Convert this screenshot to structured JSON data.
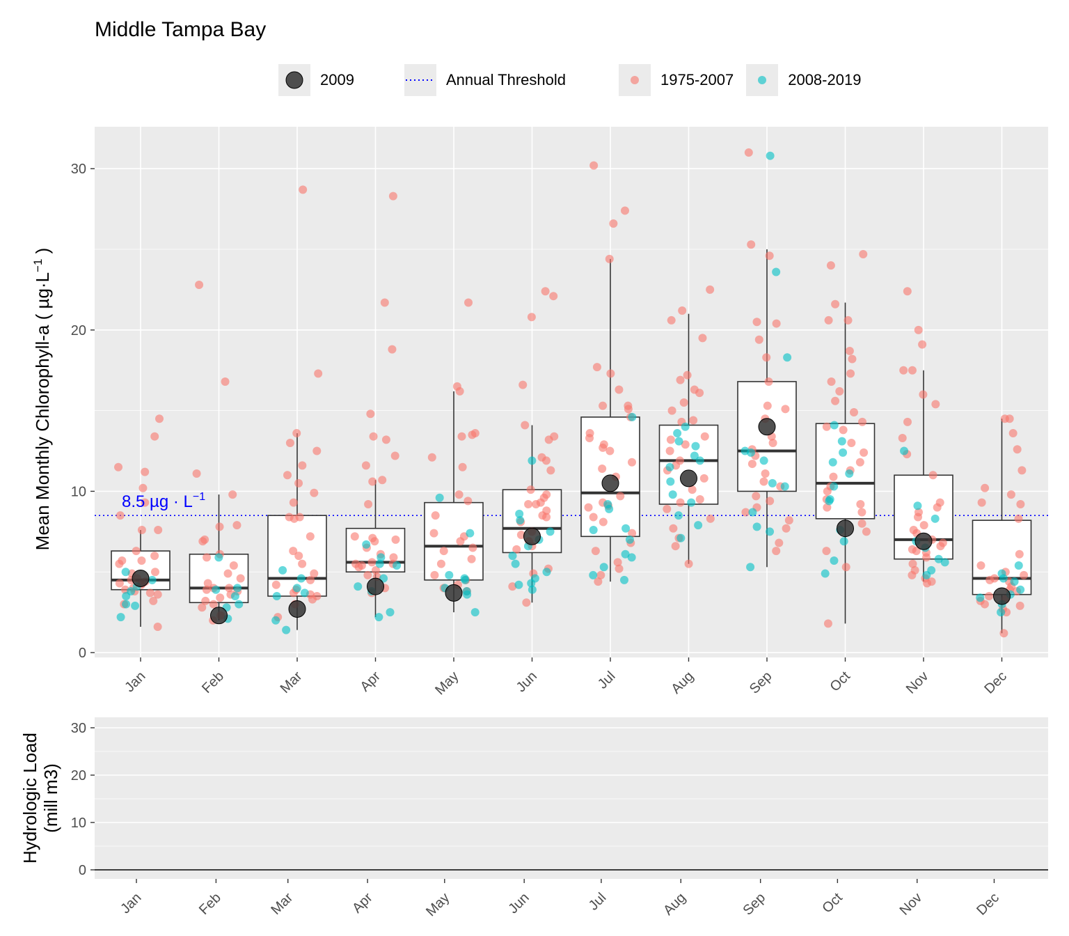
{
  "title": "Middle Tampa Bay",
  "legend": [
    {
      "key": "2009",
      "label": "2009"
    },
    {
      "key": "threshold",
      "label": "Annual Threshold"
    },
    {
      "key": "early",
      "label": "1975-2007"
    },
    {
      "key": "late",
      "label": "2008-2019"
    }
  ],
  "colors": {
    "panel": "#ebebeb",
    "early": "#F8766D",
    "late": "#00BFC4",
    "year2009": "#333333",
    "threshold": "#0000FF",
    "box": "#333333"
  },
  "threshold_label": "8.5 µg · L",
  "threshold_label_sup": "−1",
  "chart_data": [
    {
      "type": "box",
      "ylabel": "Mean Monthly Chlorophyll-a ( µg·L",
      "ylabel_sup": "−1",
      "ylabel_tail": " )",
      "ylim": [
        0,
        32.5
      ],
      "yticks": [
        0,
        10,
        20,
        30
      ],
      "categories": [
        "Jan",
        "Feb",
        "Mar",
        "Apr",
        "May",
        "Jun",
        "Jul",
        "Aug",
        "Sep",
        "Oct",
        "Nov",
        "Dec"
      ],
      "threshold": 8.5,
      "boxes": [
        {
          "month": "Jan",
          "q1": 3.9,
          "median": 4.5,
          "q3": 6.3,
          "whisker_low": 1.6,
          "whisker_high": 7.6
        },
        {
          "month": "Feb",
          "q1": 3.1,
          "median": 4.0,
          "q3": 6.1,
          "whisker_low": 2.0,
          "whisker_high": 9.8
        },
        {
          "month": "Mar",
          "q1": 3.5,
          "median": 4.6,
          "q3": 8.5,
          "whisker_low": 1.4,
          "whisker_high": 13.6
        },
        {
          "month": "Apr",
          "q1": 5.0,
          "median": 5.6,
          "q3": 7.7,
          "whisker_low": 2.2,
          "whisker_high": 10.7
        },
        {
          "month": "May",
          "q1": 4.5,
          "median": 6.6,
          "q3": 9.3,
          "whisker_low": 2.5,
          "whisker_high": 16.2
        },
        {
          "month": "Jun",
          "q1": 6.2,
          "median": 7.7,
          "q3": 10.1,
          "whisker_low": 3.1,
          "whisker_high": 14.1
        },
        {
          "month": "Jul",
          "q1": 7.2,
          "median": 9.9,
          "q3": 14.6,
          "whisker_low": 4.4,
          "whisker_high": 24.4
        },
        {
          "month": "Aug",
          "q1": 9.2,
          "median": 11.9,
          "q3": 14.1,
          "whisker_low": 5.5,
          "whisker_high": 21.0
        },
        {
          "month": "Sep",
          "q1": 10.0,
          "median": 12.5,
          "q3": 16.8,
          "whisker_low": 5.3,
          "whisker_high": 25.0
        },
        {
          "month": "Oct",
          "q1": 8.3,
          "median": 10.5,
          "q3": 14.2,
          "whisker_low": 1.8,
          "whisker_high": 21.7
        },
        {
          "month": "Nov",
          "q1": 5.8,
          "median": 7.0,
          "q3": 11.0,
          "whisker_low": 4.4,
          "whisker_high": 17.5
        },
        {
          "month": "Dec",
          "q1": 3.6,
          "median": 4.6,
          "q3": 8.2,
          "whisker_low": 1.2,
          "whisker_high": 14.5
        }
      ],
      "points_1975_2007": [
        [
          14.5,
          13.4,
          11.5,
          11.2,
          10.2,
          9.3,
          8.5,
          7.6,
          7.6,
          6.3,
          6.0,
          5.7,
          5.7,
          5.5,
          5.0,
          4.9,
          4.6,
          4.5,
          4.4,
          4.3,
          4.3,
          4.2,
          4.0,
          3.9,
          3.8,
          3.7,
          3.6,
          3.2,
          3.0,
          1.6
        ],
        [
          22.8,
          16.8,
          11.1,
          9.8,
          7.9,
          7.8,
          7.0,
          6.9,
          6.1,
          5.9,
          5.4,
          4.9,
          4.6,
          4.3,
          4.0,
          4.0,
          3.9,
          3.8,
          3.6,
          3.4,
          3.2,
          3.0,
          2.8,
          2.3,
          2.0
        ],
        [
          28.7,
          17.3,
          13.6,
          13.0,
          12.5,
          11.6,
          11.0,
          10.5,
          9.9,
          9.3,
          8.4,
          8.4,
          8.3,
          7.2,
          6.3,
          6.0,
          5.5,
          4.9,
          4.5,
          4.2,
          3.9,
          3.7,
          3.6,
          3.5,
          3.3,
          3.0,
          2.2
        ],
        [
          28.3,
          21.7,
          18.8,
          14.8,
          13.4,
          13.2,
          12.2,
          11.6,
          10.7,
          10.6,
          9.2,
          7.2,
          7.1,
          7.0,
          6.9,
          6.5,
          6.1,
          5.9,
          5.6,
          5.5,
          5.5,
          5.4,
          5.3,
          5.1,
          4.8,
          4.7,
          4.0,
          3.7
        ],
        [
          21.7,
          16.5,
          16.2,
          13.6,
          13.5,
          13.4,
          12.1,
          11.5,
          9.8,
          9.4,
          8.5,
          7.4,
          7.2,
          6.9,
          6.5,
          6.3,
          5.8,
          5.5,
          4.8,
          4.5,
          4.2,
          4.0,
          3.8
        ],
        [
          22.4,
          22.1,
          20.8,
          16.6,
          14.1,
          13.4,
          13.2,
          12.1,
          11.9,
          11.3,
          10.1,
          9.8,
          9.6,
          9.3,
          9.2,
          9.2,
          8.8,
          8.5,
          8.4,
          8.1,
          7.5,
          7.3,
          6.9,
          6.6,
          6.4,
          5.2,
          4.9,
          4.1,
          3.1
        ],
        [
          30.2,
          27.4,
          26.6,
          24.4,
          17.7,
          17.3,
          16.3,
          15.3,
          15.3,
          15.1,
          14.6,
          13.6,
          13.3,
          12.9,
          12.7,
          12.5,
          11.8,
          11.4,
          10.9,
          9.7,
          9.3,
          9.1,
          9.0,
          8.4,
          8.1,
          7.4,
          6.8,
          6.3,
          5.6,
          5.2,
          4.8,
          4.4
        ],
        [
          22.5,
          21.2,
          20.6,
          19.5,
          17.2,
          16.9,
          16.3,
          16.1,
          15.5,
          15.0,
          14.4,
          14.3,
          13.4,
          13.2,
          12.9,
          12.5,
          11.9,
          11.6,
          11.3,
          10.8,
          10.1,
          9.5,
          9.3,
          8.9,
          8.3,
          7.7,
          7.1,
          6.6,
          5.5
        ],
        [
          31.0,
          25.3,
          24.6,
          20.5,
          20.4,
          19.4,
          18.3,
          16.8,
          15.3,
          15.1,
          14.5,
          13.4,
          13.0,
          12.6,
          12.2,
          11.7,
          11.1,
          10.6,
          10.3,
          9.7,
          9.4,
          9.0,
          8.7,
          8.2,
          7.7,
          6.8,
          6.3
        ],
        [
          24.7,
          24.0,
          21.6,
          20.6,
          20.6,
          18.7,
          18.2,
          17.3,
          16.8,
          16.2,
          15.6,
          14.9,
          14.3,
          14.0,
          13.8,
          13.0,
          12.4,
          11.8,
          11.3,
          10.9,
          10.3,
          10.0,
          9.5,
          9.2,
          9.0,
          8.7,
          8.0,
          7.5,
          6.3,
          5.3,
          1.8
        ],
        [
          22.4,
          20.0,
          19.1,
          17.5,
          17.5,
          16.0,
          15.4,
          14.3,
          13.3,
          12.3,
          11.0,
          9.3,
          9.0,
          8.7,
          8.4,
          7.9,
          7.6,
          7.4,
          7.0,
          6.8,
          6.6,
          6.4,
          6.3,
          6.2,
          5.9,
          5.5,
          5.1,
          4.8,
          4.6,
          4.4,
          4.3
        ],
        [
          14.5,
          14.5,
          13.6,
          12.6,
          11.3,
          10.2,
          9.8,
          9.3,
          9.2,
          8.3,
          6.1,
          5.4,
          5.0,
          4.8,
          4.6,
          4.5,
          4.4,
          4.1,
          3.9,
          3.8,
          3.5,
          3.3,
          3.2,
          3.0,
          2.9,
          2.7,
          2.5,
          1.2
        ]
      ],
      "points_2008_2019": [
        [
          5.0,
          4.5,
          4.1,
          3.8,
          3.5,
          3.0,
          2.9,
          2.2
        ],
        [
          5.9,
          4.0,
          3.9,
          3.5,
          3.0,
          2.8,
          2.1
        ],
        [
          5.1,
          4.6,
          4.0,
          3.7,
          3.5,
          2.0,
          1.4
        ],
        [
          6.7,
          5.9,
          5.5,
          5.4,
          4.6,
          4.1,
          3.8,
          2.5,
          2.2
        ],
        [
          9.6,
          7.4,
          4.8,
          4.6,
          4.5,
          4.0,
          3.8,
          3.6,
          2.5
        ],
        [
          11.9,
          8.6,
          8.2,
          7.5,
          7.0,
          6.6,
          6.0,
          5.5,
          5.0,
          4.6,
          4.3,
          4.2,
          3.9
        ],
        [
          14.6,
          9.2,
          8.9,
          7.7,
          7.6,
          7.0,
          6.1,
          5.9,
          5.3,
          4.8,
          4.5
        ],
        [
          14.0,
          13.6,
          13.1,
          12.8,
          12.2,
          11.9,
          11.5,
          10.6,
          9.8,
          9.3,
          8.5,
          7.9,
          7.1
        ],
        [
          30.8,
          23.6,
          18.3,
          12.5,
          12.4,
          11.9,
          10.5,
          10.3,
          8.7,
          7.8,
          7.5,
          5.3
        ],
        [
          14.1,
          13.1,
          12.4,
          11.8,
          11.1,
          10.3,
          9.5,
          9.4,
          7.6,
          6.9,
          5.7,
          4.9
        ],
        [
          12.5,
          9.1,
          8.3,
          6.9,
          6.5,
          5.8,
          5.6,
          5.1,
          4.8
        ],
        [
          5.4,
          4.9,
          4.6,
          4.4,
          3.9,
          3.6,
          3.4,
          3.0,
          2.5
        ]
      ],
      "year_2009": [
        4.6,
        2.3,
        2.7,
        4.1,
        3.7,
        7.2,
        10.5,
        10.8,
        14.0,
        7.7,
        6.9,
        3.5
      ]
    },
    {
      "type": "bar",
      "ylabel_line1": "Hydrologic Load",
      "ylabel_line2": "(mill m3)",
      "ylim": [
        0,
        32
      ],
      "yticks": [
        0,
        10,
        20,
        30
      ],
      "categories": [
        "Jan",
        "Feb",
        "Mar",
        "Apr",
        "May",
        "Jun",
        "Jul",
        "Aug",
        "Sep",
        "Oct",
        "Nov",
        "Dec"
      ],
      "daily_start_day": 0,
      "daily_values": [
        0.0,
        0.0,
        0.0,
        0.0,
        0.0,
        0.0,
        0.0,
        0.0,
        0.0,
        0.0,
        0.0,
        0.0,
        0.0,
        0.0,
        0.0,
        0.0,
        0.0,
        0.0,
        0.0,
        0.0,
        0.0,
        0.0,
        0.0,
        0.0,
        0.0,
        0.0,
        0.0,
        0.0,
        0.0,
        0.0,
        0.0,
        0.0,
        0.0,
        0.0,
        0.0,
        0.0,
        0.0,
        0.0,
        0.0,
        0.0,
        0.0,
        0.0,
        0.0,
        0.0,
        0.0,
        0.0,
        0.0,
        0.0,
        0.0,
        0.0,
        0.0,
        0.0,
        0.0,
        0.0,
        0.0,
        0.0,
        0.0,
        0.0,
        0.0,
        0.0,
        0.0,
        0.0,
        0.0,
        0.0,
        0.0,
        0.0,
        0.0,
        0.0,
        0.0,
        0.0,
        0.0,
        0.0,
        0.0,
        0.0,
        0.0,
        0.0,
        0.0,
        0.0,
        0.0,
        0.0,
        0.0,
        0.0,
        0.0,
        0.0,
        0.0,
        0.0,
        0.0,
        0.0,
        0.0,
        0.0,
        0.0,
        0.0,
        0.0,
        0.0,
        0.0,
        0.0,
        0.0,
        0.0,
        0.0,
        0.0,
        0.0,
        0.0,
        0.0,
        0.0,
        0.0,
        0.0,
        0.0,
        0.0,
        0.0,
        0.0,
        0.0,
        0.0,
        0.0,
        0.0,
        0.0,
        0.0,
        0.0,
        0.0,
        0.0,
        0.0,
        0.0,
        0.0,
        0.0,
        0.0,
        0.0,
        0.0,
        0.0,
        0.0,
        0.0,
        0.0,
        0.0,
        0.0,
        0.0,
        0.0,
        0.0,
        0.0,
        0.0,
        0.0,
        0.0,
        0.0,
        0.0,
        0.0,
        0.0,
        0.0,
        0.0,
        0.0,
        0.0,
        0.0,
        0.0,
        0.0,
        0.0,
        0.0,
        0.0,
        0.0,
        0.0,
        0.0,
        0.0,
        0.0,
        0.0,
        0.0,
        0.0,
        0.0,
        0.0,
        0.0,
        0.0,
        0.0,
        0.0,
        0.0,
        0.0,
        0.0,
        0.0,
        0.0,
        0.0,
        0.0,
        0.0,
        0.0,
        0.0,
        0.0,
        0.0,
        0.0,
        0.0,
        0.0,
        0.0,
        0.0,
        0.0,
        0.0,
        0.0,
        0.0,
        0.0,
        0.0,
        0.0,
        0.0,
        0.0,
        0.0,
        0.0,
        0.0,
        0.0,
        0.0,
        0.0,
        0.0,
        0.0,
        0.0,
        0.0,
        0.0,
        0.0,
        0.0,
        0.0,
        0.0,
        0.0,
        0.0,
        0.0,
        0.0,
        0.0,
        0.0,
        0.0,
        0.0,
        0.0,
        0.0,
        0.0,
        0.0,
        0.0,
        0.0,
        0.0,
        0.0,
        0.0,
        0.0,
        0.0,
        0.0,
        0.0,
        0.0,
        0.0,
        0.0,
        0.0,
        0.0,
        0.0,
        0.0,
        0.0,
        0.0,
        0.0,
        0.0,
        0.0,
        0.0,
        0.0,
        0.0,
        0.0,
        0.0,
        0.0,
        0.0,
        0.0,
        0.0,
        0.0,
        0.0,
        0.0,
        0.0,
        0.0,
        0.0,
        0.0,
        0.0,
        0.0,
        0.0,
        0.0,
        0.0,
        0.0,
        0.0,
        0.0,
        0.0,
        0.0,
        0.0,
        0.0,
        0.0,
        0.0,
        0.0,
        0.0,
        0.0,
        0.0,
        0.0,
        0.0,
        0.0,
        0.0,
        0.0,
        0.0,
        0.0,
        0.0,
        0.0,
        0.0,
        0.0,
        0.0,
        0.0,
        0.0,
        0.0,
        0.0,
        0.0,
        0.0,
        0.0,
        0.0,
        0.0,
        0.0,
        0.0,
        0.0,
        0.0,
        0.0,
        0.0,
        0.0,
        0.0,
        0.0,
        0.0,
        0.0,
        0.0,
        0.0,
        0.0,
        0.0,
        0.0,
        0.0,
        0.0,
        0.0,
        0.0,
        0.0,
        0.0,
        0.0,
        0.0,
        0.0,
        0.0,
        0.0,
        0.0,
        0.0,
        0.0,
        0.0,
        0.0,
        0.0,
        0.0,
        0.0,
        0.0,
        0.0,
        0.0,
        0.0,
        0.0,
        0.0,
        0.0,
        0.0,
        0.0,
        0.0,
        0.0,
        0.0,
        0.0,
        0.0,
        0.0,
        0.0,
        0.0,
        0.0,
        0.0,
        0.0,
        0.0
      ]
    }
  ]
}
